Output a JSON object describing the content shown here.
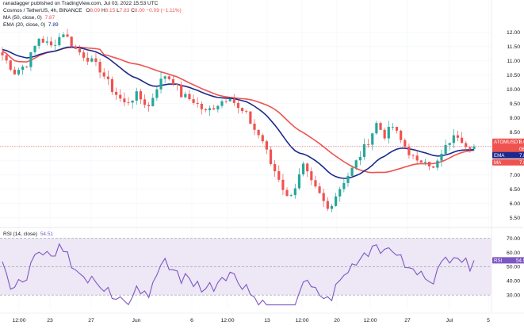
{
  "header": {
    "publisher": "ranadagger published on TradingView.com, Jul 03, 2022 15:53 UTC",
    "symbol_line": "Cosmos / TetherUS, 4h, BINANCE",
    "ohlc": {
      "o_label": "O",
      "o": "8.09",
      "h_label": "H",
      "h": "8.15",
      "l_label": "L",
      "l": "7.83",
      "c_label": "C",
      "c": "8.00",
      "change": "−0.09 (−1.11%)"
    },
    "ma_label": "MA (50, close, 0)",
    "ma_value": "7.87",
    "ema_label": "EMA (20, close, 0)",
    "ema_value": "7.89",
    "rsi_label": "RSI (14, close)",
    "rsi_value": "54.51"
  },
  "tags": {
    "price_symbol": "ATOMUSDT",
    "price_value": "8.00",
    "price_countdown": "06:13",
    "ema_name": "EMA",
    "ema_value": "7.89",
    "ma_name": "MA",
    "ma_value": "7.87",
    "rsi_name": "RSI",
    "rsi_value": "54.51"
  },
  "colors": {
    "up": "#26a69a",
    "down": "#ef5350",
    "ema": "#1a2a8c",
    "ma": "#ef5350",
    "rsi": "#7e57c2",
    "rsi_band": "#ede7f6"
  },
  "chart_data": [
    {
      "type": "candlestick",
      "title": "Cosmos / TetherUS, 4h, BINANCE",
      "y_axis_ticks": [
        "12.00",
        "11.50",
        "11.00",
        "10.50",
        "10.00",
        "9.50",
        "9.00",
        "8.50",
        "8.00",
        "7.50",
        "7.00",
        "6.50",
        "6.00",
        "5.50"
      ],
      "ylim": [
        5.3,
        12.3
      ],
      "x_axis_ticks": [
        "12:00",
        "23",
        "27",
        "Jun",
        "6",
        "12:00",
        "13",
        "12:00",
        "20",
        "12:00",
        "27",
        "Jul",
        "5"
      ],
      "overlays": [
        "MA (50, close, 0)",
        "EMA (20, close, 0)"
      ],
      "close_path": [
        [
          0,
          11.2
        ],
        [
          3,
          10.6
        ],
        [
          6,
          10.9
        ],
        [
          9,
          11.8
        ],
        [
          12,
          11.5
        ],
        [
          15,
          12.0
        ],
        [
          18,
          11.4
        ],
        [
          21,
          11.1
        ],
        [
          24,
          10.7
        ],
        [
          27,
          10.0
        ],
        [
          30,
          9.5
        ],
        [
          33,
          9.8
        ],
        [
          36,
          9.4
        ],
        [
          38,
          10.1
        ],
        [
          40,
          10.5
        ],
        [
          42,
          10.3
        ],
        [
          44,
          9.8
        ],
        [
          47,
          9.6
        ],
        [
          50,
          9.2
        ],
        [
          53,
          9.5
        ],
        [
          56,
          9.8
        ],
        [
          58,
          9.3
        ],
        [
          60,
          9.1
        ],
        [
          62,
          8.6
        ],
        [
          64,
          8.2
        ],
        [
          66,
          7.4
        ],
        [
          68,
          6.9
        ],
        [
          70,
          6.2
        ],
        [
          72,
          6.6
        ],
        [
          74,
          7.3
        ],
        [
          76,
          6.7
        ],
        [
          78,
          6.3
        ],
        [
          80,
          5.8
        ],
        [
          82,
          6.3
        ],
        [
          84,
          6.8
        ],
        [
          86,
          7.2
        ],
        [
          88,
          7.7
        ],
        [
          90,
          8.2
        ],
        [
          92,
          8.8
        ],
        [
          94,
          8.4
        ],
        [
          96,
          8.7
        ],
        [
          98,
          8.2
        ],
        [
          100,
          7.8
        ],
        [
          102,
          7.4
        ],
        [
          104,
          7.6
        ],
        [
          106,
          7.2
        ],
        [
          108,
          7.7
        ],
        [
          110,
          8.2
        ],
        [
          112,
          8.4
        ],
        [
          114,
          8.1
        ],
        [
          116,
          8.0
        ]
      ],
      "current_price": 8.0,
      "ema_last": 7.89,
      "ma_last": 7.87
    },
    {
      "type": "line",
      "title": "RSI (14, close)",
      "y_axis_ticks": [
        "70.00",
        "60.00",
        "50.00",
        "40.00",
        "30.00"
      ],
      "ylim": [
        20,
        76
      ],
      "band": [
        30,
        70
      ],
      "last": 54.51
    }
  ]
}
